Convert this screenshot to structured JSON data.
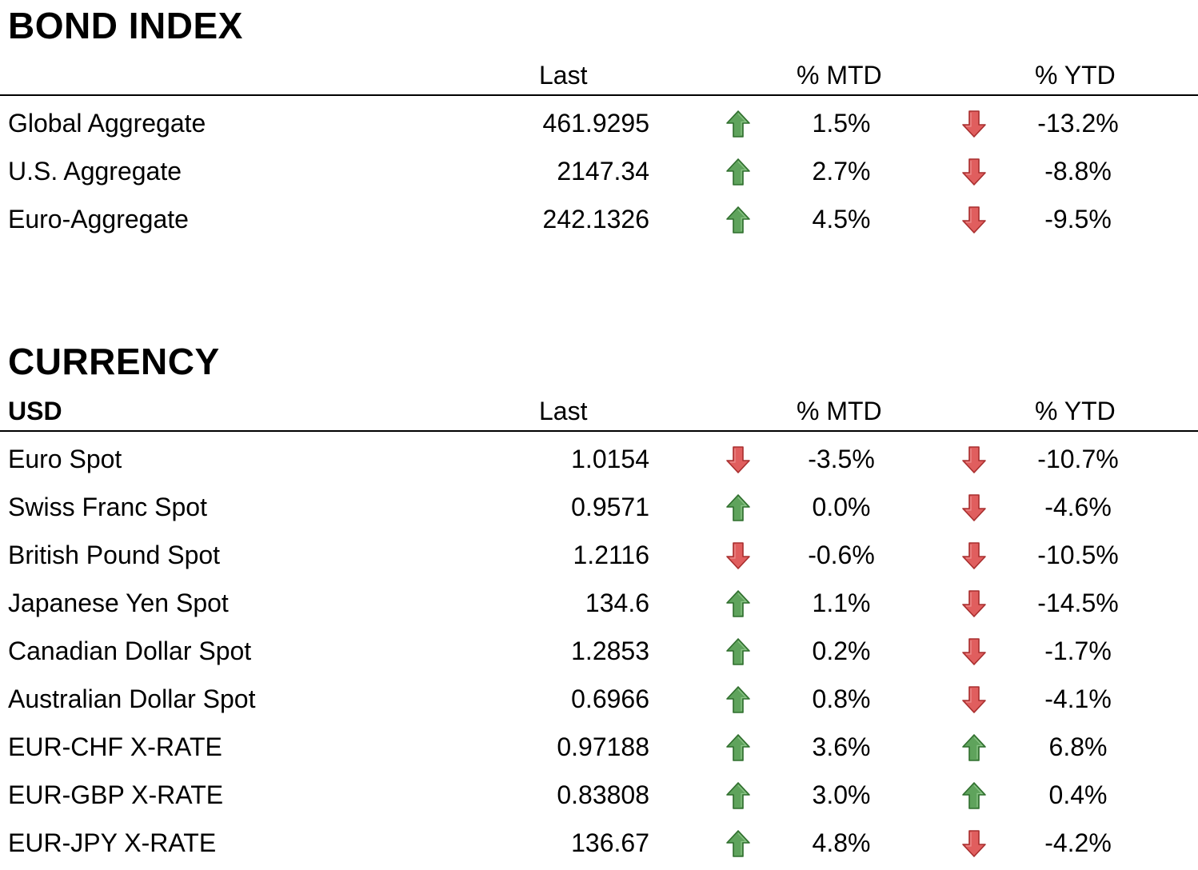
{
  "colors": {
    "up_arrow_fill": "#5fa35c",
    "up_arrow_stroke": "#2f6e2d",
    "down_arrow_fill": "#e05e5e",
    "down_arrow_stroke": "#a82e2e"
  },
  "bond_index": {
    "title": "BOND INDEX",
    "header": {
      "name": "",
      "last": "Last",
      "mtd": "% MTD",
      "ytd": "% YTD"
    },
    "rows": [
      {
        "name": "Global Aggregate",
        "last": "461.9295",
        "mtd_dir": "up",
        "mtd": "1.5%",
        "ytd_dir": "down",
        "ytd": "-13.2%"
      },
      {
        "name": "U.S. Aggregate",
        "last": "2147.34",
        "mtd_dir": "up",
        "mtd": "2.7%",
        "ytd_dir": "down",
        "ytd": "-8.8%"
      },
      {
        "name": "Euro-Aggregate",
        "last": "242.1326",
        "mtd_dir": "up",
        "mtd": "4.5%",
        "ytd_dir": "down",
        "ytd": "-9.5%"
      }
    ]
  },
  "currency": {
    "title": "CURRENCY",
    "header": {
      "name": "USD",
      "last": "Last",
      "mtd": "% MTD",
      "ytd": "% YTD"
    },
    "rows": [
      {
        "name": "Euro Spot",
        "last": "1.0154",
        "mtd_dir": "down",
        "mtd": "-3.5%",
        "ytd_dir": "down",
        "ytd": "-10.7%"
      },
      {
        "name": "Swiss Franc Spot",
        "last": "0.9571",
        "mtd_dir": "up",
        "mtd": "0.0%",
        "ytd_dir": "down",
        "ytd": "-4.6%"
      },
      {
        "name": "British Pound Spot",
        "last": "1.2116",
        "mtd_dir": "down",
        "mtd": "-0.6%",
        "ytd_dir": "down",
        "ytd": "-10.5%"
      },
      {
        "name": "Japanese Yen Spot",
        "last": "134.6",
        "mtd_dir": "up",
        "mtd": "1.1%",
        "ytd_dir": "down",
        "ytd": "-14.5%"
      },
      {
        "name": "Canadian Dollar Spot",
        "last": "1.2853",
        "mtd_dir": "up",
        "mtd": "0.2%",
        "ytd_dir": "down",
        "ytd": "-1.7%"
      },
      {
        "name": "Australian Dollar Spot",
        "last": "0.6966",
        "mtd_dir": "up",
        "mtd": "0.8%",
        "ytd_dir": "down",
        "ytd": "-4.1%"
      },
      {
        "name": "EUR-CHF X-RATE",
        "last": "0.97188",
        "mtd_dir": "up",
        "mtd": "3.6%",
        "ytd_dir": "up",
        "ytd": "6.8%"
      },
      {
        "name": "EUR-GBP X-RATE",
        "last": "0.83808",
        "mtd_dir": "up",
        "mtd": "3.0%",
        "ytd_dir": "up",
        "ytd": "0.4%"
      },
      {
        "name": "EUR-JPY X-RATE",
        "last": "136.67",
        "mtd_dir": "up",
        "mtd": "4.8%",
        "ytd_dir": "down",
        "ytd": "-4.2%"
      }
    ]
  }
}
